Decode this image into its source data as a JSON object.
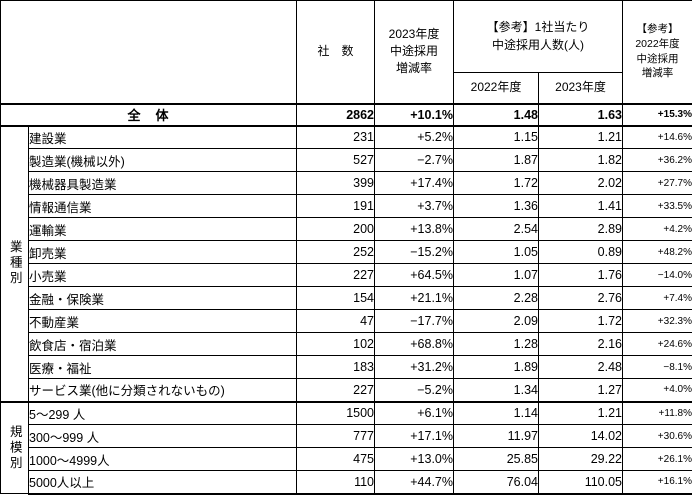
{
  "table": {
    "header": {
      "corner": "",
      "companies": "社　数",
      "rate2023": "2023年度\n中途採用\n増減率",
      "ref_per_company": "【参考】1社当たり\n中途採用人数(人)",
      "sub_2022": "2022年度",
      "sub_2023": "2023年度",
      "ref_rate2022": "【参考】\n2022年度\n中途採用\n増減率"
    },
    "total": {
      "label": "全　体",
      "companies": "2862",
      "rate2023": "+10.1%",
      "per2022": "1.48",
      "per2023": "1.63",
      "rate2022": "+15.3%"
    },
    "groups": [
      {
        "name": "業種別",
        "rows": [
          {
            "label": "建設業",
            "companies": "231",
            "rate2023": "+5.2%",
            "per2022": "1.15",
            "per2023": "1.21",
            "rate2022": "+14.6%"
          },
          {
            "label": "製造業(機械以外)",
            "companies": "527",
            "rate2023": "−2.7%",
            "per2022": "1.87",
            "per2023": "1.82",
            "rate2022": "+36.2%"
          },
          {
            "label": "機械器具製造業",
            "companies": "399",
            "rate2023": "+17.4%",
            "per2022": "1.72",
            "per2023": "2.02",
            "rate2022": "+27.7%"
          },
          {
            "label": "情報通信業",
            "companies": "191",
            "rate2023": "+3.7%",
            "per2022": "1.36",
            "per2023": "1.41",
            "rate2022": "+33.5%"
          },
          {
            "label": "運輸業",
            "companies": "200",
            "rate2023": "+13.8%",
            "per2022": "2.54",
            "per2023": "2.89",
            "rate2022": "+4.2%"
          },
          {
            "label": "卸売業",
            "companies": "252",
            "rate2023": "−15.2%",
            "per2022": "1.05",
            "per2023": "0.89",
            "rate2022": "+48.2%"
          },
          {
            "label": "小売業",
            "companies": "227",
            "rate2023": "+64.5%",
            "per2022": "1.07",
            "per2023": "1.76",
            "rate2022": "−14.0%"
          },
          {
            "label": "金融・保険業",
            "companies": "154",
            "rate2023": "+21.1%",
            "per2022": "2.28",
            "per2023": "2.76",
            "rate2022": "+7.4%"
          },
          {
            "label": "不動産業",
            "companies": "47",
            "rate2023": "−17.7%",
            "per2022": "2.09",
            "per2023": "1.72",
            "rate2022": "+32.3%"
          },
          {
            "label": "飲食店・宿泊業",
            "companies": "102",
            "rate2023": "+68.8%",
            "per2022": "1.28",
            "per2023": "2.16",
            "rate2022": "+24.6%"
          },
          {
            "label": "医療・福祉",
            "companies": "183",
            "rate2023": "+31.2%",
            "per2022": "1.89",
            "per2023": "2.48",
            "rate2022": "−8.1%"
          },
          {
            "label": "サービス業(他に分類されないもの)",
            "companies": "227",
            "rate2023": "−5.2%",
            "per2022": "1.34",
            "per2023": "1.27",
            "rate2022": "+4.0%"
          }
        ]
      },
      {
        "name": "規模別",
        "rows": [
          {
            "label": "5〜299 人",
            "companies": "1500",
            "rate2023": "+6.1%",
            "per2022": "1.14",
            "per2023": "1.21",
            "rate2022": "+11.8%"
          },
          {
            "label": "300〜999 人",
            "companies": "777",
            "rate2023": "+17.1%",
            "per2022": "11.97",
            "per2023": "14.02",
            "rate2022": "+30.6%"
          },
          {
            "label": "1000〜4999人",
            "companies": "475",
            "rate2023": "+13.0%",
            "per2022": "25.85",
            "per2023": "29.22",
            "rate2022": "+26.1%"
          },
          {
            "label": "5000人以上",
            "companies": "110",
            "rate2023": "+44.7%",
            "per2022": "76.04",
            "per2023": "110.05",
            "rate2022": "+16.1%"
          }
        ]
      }
    ]
  },
  "colors": {
    "text": "#000000",
    "border": "#000000",
    "background": "#ffffff"
  }
}
